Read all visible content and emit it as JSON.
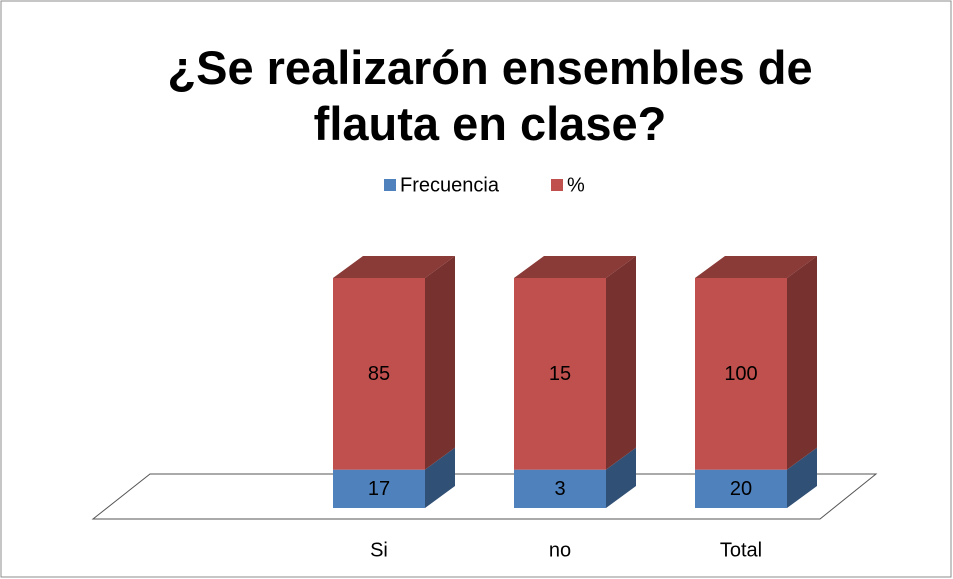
{
  "chart_data": {
    "type": "bar",
    "stacking": "percent",
    "title": "¿Se realizarón ensembles de flauta en clase?",
    "categories": [
      "Si",
      "no",
      "Total"
    ],
    "series": [
      {
        "name": "Frecuencia",
        "color": "#4f81bd",
        "values": [
          17,
          3,
          20
        ]
      },
      {
        "name": "%",
        "color": "#c0504d",
        "values": [
          85,
          15,
          100
        ]
      }
    ],
    "legend": "top"
  }
}
